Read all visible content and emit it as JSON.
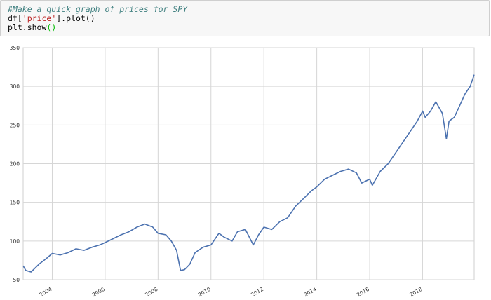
{
  "code_cell": {
    "line1_comment": "#Make a quick graph of prices for SPY",
    "line2_prefix": "df[",
    "line2_string": "'price'",
    "line2_suffix": "].plot()",
    "line3_prefix": "plt.show",
    "line3_parens": "()"
  },
  "chart_data": {
    "type": "line",
    "title": "",
    "xlabel": "",
    "ylabel": "",
    "xlim": [
      2002.9,
      2019.95
    ],
    "ylim": [
      50,
      350
    ],
    "yticks": [
      50,
      100,
      150,
      200,
      250,
      300,
      350
    ],
    "xticks": [
      2004,
      2006,
      2008,
      2010,
      2012,
      2014,
      2016,
      2018
    ],
    "grid": true,
    "line_color": "#4c72b0",
    "x": [
      2002.9,
      2003.0,
      2003.2,
      2003.5,
      2003.8,
      2004.0,
      2004.3,
      2004.6,
      2004.9,
      2005.2,
      2005.5,
      2005.8,
      2006.0,
      2006.3,
      2006.6,
      2006.9,
      2007.2,
      2007.5,
      2007.8,
      2008.0,
      2008.3,
      2008.5,
      2008.7,
      2008.85,
      2009.0,
      2009.2,
      2009.4,
      2009.7,
      2010.0,
      2010.3,
      2010.5,
      2010.8,
      2011.0,
      2011.3,
      2011.6,
      2011.8,
      2012.0,
      2012.3,
      2012.6,
      2012.9,
      2013.2,
      2013.5,
      2013.8,
      2014.0,
      2014.3,
      2014.6,
      2014.9,
      2015.2,
      2015.5,
      2015.7,
      2016.0,
      2016.1,
      2016.4,
      2016.7,
      2016.9,
      2017.2,
      2017.5,
      2017.8,
      2018.0,
      2018.1,
      2018.3,
      2018.5,
      2018.75,
      2018.9,
      2019.0,
      2019.2,
      2019.4,
      2019.6,
      2019.8,
      2019.95
    ],
    "y": [
      68,
      62,
      60,
      70,
      78,
      84,
      82,
      85,
      90,
      88,
      92,
      95,
      98,
      103,
      108,
      112,
      118,
      122,
      118,
      110,
      108,
      100,
      88,
      62,
      63,
      70,
      85,
      92,
      95,
      110,
      105,
      100,
      112,
      115,
      95,
      108,
      118,
      115,
      125,
      130,
      145,
      155,
      165,
      170,
      180,
      185,
      190,
      193,
      188,
      175,
      180,
      172,
      190,
      200,
      210,
      225,
      240,
      255,
      268,
      260,
      268,
      280,
      265,
      232,
      255,
      260,
      275,
      290,
      300,
      315
    ]
  }
}
